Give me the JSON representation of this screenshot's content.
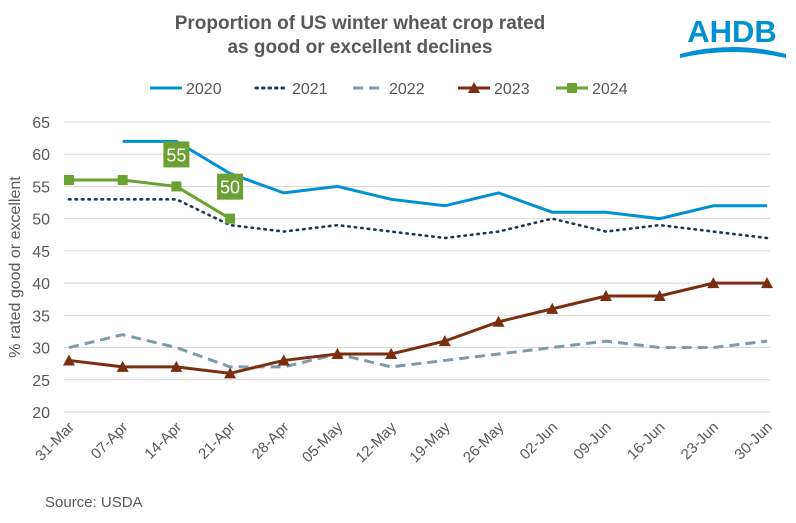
{
  "logo_text": "AHDB",
  "source": "Source: USDA",
  "colors": {
    "2020": "#0090D4",
    "2021": "#1F3A4D",
    "2022": "#7F9AA8",
    "2023": "#7B2E10",
    "2024": "#6AA132"
  },
  "chart_data": {
    "type": "line",
    "title": "Proportion of US winter wheat crop rated as good or excellent declines",
    "title_lines": [
      "Proportion of US winter wheat crop rated",
      "as good or excellent declines"
    ],
    "xlabel": "",
    "ylabel": "% rated good or excellent",
    "ylim": [
      20,
      65
    ],
    "yticks": [
      20,
      25,
      30,
      35,
      40,
      45,
      50,
      55,
      60,
      65
    ],
    "grid": true,
    "legend_position": "top",
    "categories": [
      "31-Mar",
      "07-Apr",
      "14-Apr",
      "21-Apr",
      "28-Apr",
      "05-May",
      "12-May",
      "19-May",
      "26-May",
      "02-Jun",
      "09-Jun",
      "16-Jun",
      "23-Jun",
      "30-Jun"
    ],
    "series": [
      {
        "name": "2020",
        "style": "solid",
        "marker": "none",
        "values": [
          null,
          62,
          62,
          57,
          54,
          55,
          53,
          52,
          54,
          51,
          51,
          50,
          52,
          52
        ]
      },
      {
        "name": "2021",
        "style": "dotted",
        "marker": "none",
        "values": [
          53,
          53,
          53,
          49,
          48,
          49,
          48,
          47,
          48,
          50,
          48,
          49,
          48,
          47
        ]
      },
      {
        "name": "2022",
        "style": "dashed",
        "marker": "none",
        "values": [
          30,
          32,
          30,
          27,
          27,
          29,
          27,
          28,
          29,
          30,
          31,
          30,
          30,
          31
        ]
      },
      {
        "name": "2023",
        "style": "solid",
        "marker": "triangle",
        "values": [
          28,
          27,
          27,
          26,
          28,
          29,
          29,
          31,
          34,
          36,
          38,
          38,
          40,
          40
        ]
      },
      {
        "name": "2024",
        "style": "solid",
        "marker": "square",
        "values": [
          56,
          56,
          55,
          50,
          null,
          null,
          null,
          null,
          null,
          null,
          null,
          null,
          null,
          null
        ]
      }
    ],
    "annotations": [
      {
        "series": "2024",
        "category": "14-Apr",
        "text": "55"
      },
      {
        "series": "2024",
        "category": "21-Apr",
        "text": "50"
      }
    ]
  }
}
